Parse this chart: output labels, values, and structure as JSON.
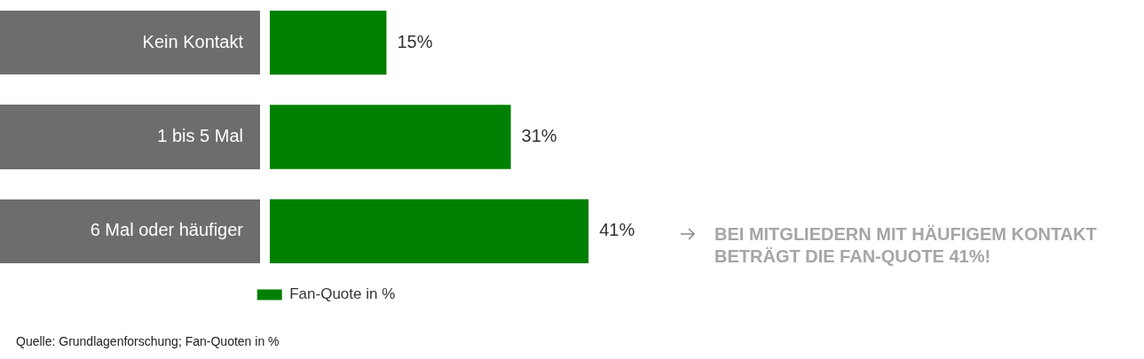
{
  "chart_data": {
    "type": "bar",
    "orientation": "horizontal",
    "categories": [
      "Kein Kontakt",
      "1 bis 5 Mal",
      "6 Mal oder häufiger"
    ],
    "series": [
      {
        "name": "Fan-Quote in %",
        "color": "#008000",
        "values": [
          15,
          31,
          41
        ],
        "value_labels": [
          "15%",
          "31%",
          "41%"
        ]
      }
    ],
    "legend": "bottom",
    "annotations": [
      "BEI MITGLIEDERN MIT HÄUFIGEM KONTAKT BETRÄGT DIE FAN-QUOTE 41%!",
      "Quelle: Grundlagenforschung; Fan-Quoten in %"
    ]
  }
}
